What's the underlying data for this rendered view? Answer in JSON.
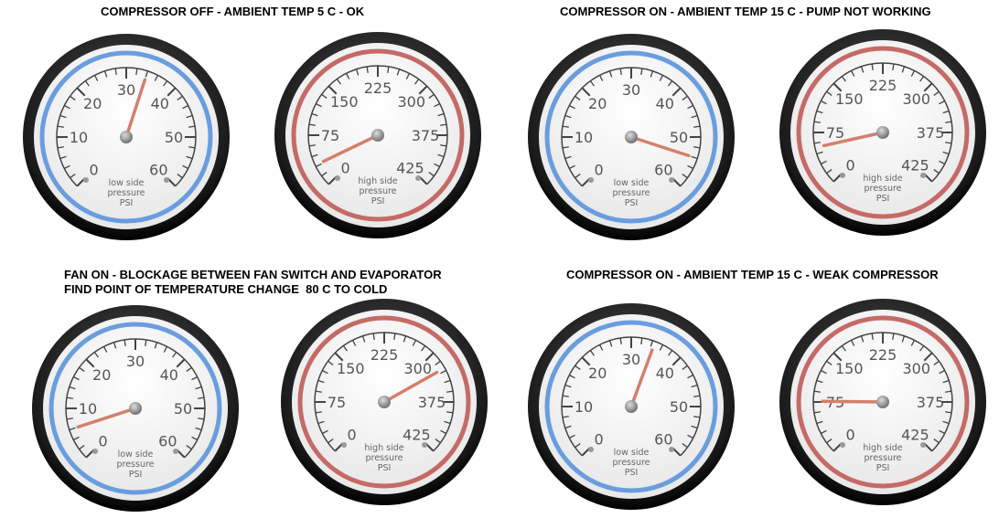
{
  "panels": [
    {
      "title_lines": [
        "COMPRESSOR OFF - AMBIENT TEMP 5 C - OK"
      ],
      "low_value": 34,
      "high_value": 32
    },
    {
      "title_lines": [
        "COMPRESSOR ON - AMBIENT TEMP 15 C - PUMP NOT WORKING"
      ],
      "low_value": 54,
      "high_value": 54
    },
    {
      "title_lines": [
        "FAN ON - BLOCKAGE BETWEEN FAN SWITCH AND EVAPORATOR",
        "FIND POINT OF TEMPERATURE CHANGE  80 C TO COLD"
      ],
      "low_value": 6,
      "high_value": 326
    },
    {
      "title_lines": [
        "COMPRESSOR ON - AMBIENT TEMP 15 C - WEAK COMPRESSOR"
      ],
      "low_value": 34.5,
      "high_value": 76
    }
  ],
  "low_gauge": {
    "labels": [
      "0",
      "10",
      "20",
      "30",
      "40",
      "50",
      "60"
    ],
    "caption": [
      "low side",
      "pressure",
      "PSI"
    ],
    "min": 0,
    "max": 60,
    "ring_color": "#6a9ddf"
  },
  "high_gauge": {
    "labels": [
      "0",
      "75",
      "150",
      "225",
      "300",
      "375",
      "425"
    ],
    "caption": [
      "high side",
      "pressure",
      "PSI"
    ],
    "min": 0,
    "max": 450,
    "ring_color": "#c56a66"
  },
  "needle_color": "#d47f6c"
}
